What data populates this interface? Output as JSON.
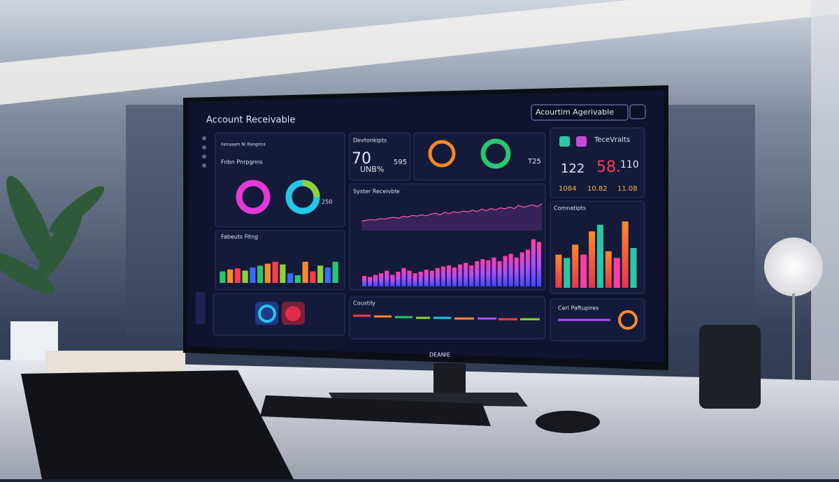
{
  "screen": {
    "title": "Account Receivable",
    "search": "Acourtim Agerivable",
    "brand": "DEANIE",
    "panels": {
      "donuts": {
        "title": "Fnbn Pnrpgnns",
        "legend": "Fanuaam Ni Rangrins",
        "center": "250"
      },
      "kpi": {
        "title": "Devtonkipts",
        "value": "70",
        "unit": "UNB%",
        "side": "595"
      },
      "gauges": {
        "side": "T25"
      },
      "receivables": {
        "title": "TeceVralts",
        "kpis": [
          "122",
          "58.",
          "110"
        ],
        "sub": [
          "1084",
          "10.82",
          "11.08"
        ]
      },
      "facets": {
        "title": "Fabeuts Fitng",
        "values": [
          30,
          35,
          38,
          32,
          40,
          45,
          50,
          55,
          48,
          25,
          20,
          55,
          30,
          45,
          40,
          55
        ]
      },
      "system": {
        "title": "Syster Receivble",
        "line": [
          30,
          32,
          35,
          33,
          38,
          36,
          40,
          42,
          39,
          45,
          43,
          48,
          46,
          50,
          47,
          52,
          55,
          50,
          58,
          54,
          60,
          57,
          62,
          59,
          65,
          60,
          68,
          63,
          70,
          66,
          72,
          69,
          75,
          70,
          80,
          74,
          78,
          82,
          76,
          85
        ],
        "bars": [
          20,
          18,
          22,
          25,
          30,
          22,
          28,
          35,
          30,
          25,
          28,
          32,
          30,
          35,
          38,
          40,
          36,
          42,
          45,
          40,
          48,
          52,
          50,
          55,
          48,
          58,
          62,
          55,
          65,
          70,
          90,
          85
        ]
      },
      "comn": {
        "title": "Comnatipts",
        "values": [
          50,
          45,
          65,
          50,
          85,
          95,
          55,
          45,
          100,
          60
        ]
      },
      "country": {
        "title": "Coustily"
      },
      "cerl": {
        "title": "Cerl Paftupires"
      }
    }
  }
}
